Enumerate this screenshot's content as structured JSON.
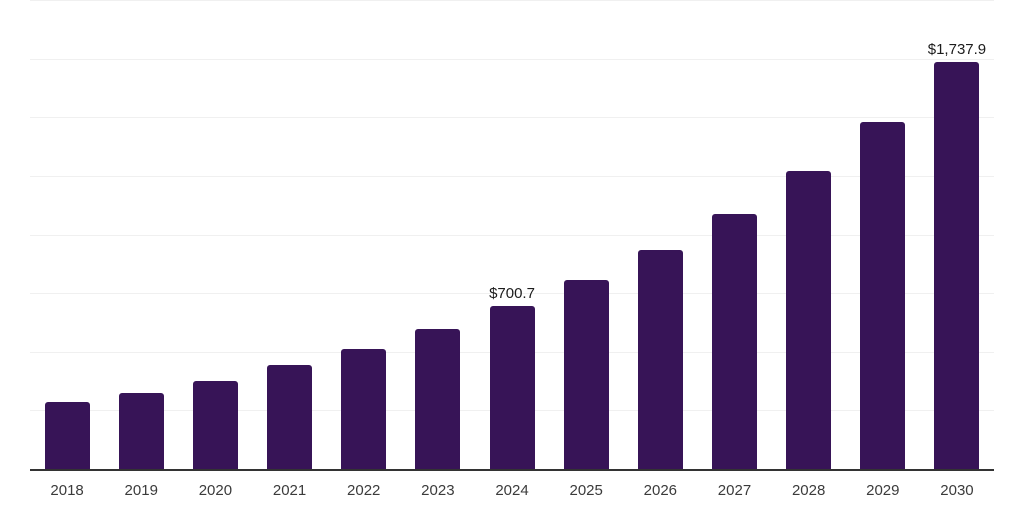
{
  "chart_data": {
    "type": "bar",
    "title": "",
    "xlabel": "",
    "ylabel": "",
    "categories": [
      "2018",
      "2019",
      "2020",
      "2021",
      "2022",
      "2023",
      "2024",
      "2025",
      "2026",
      "2027",
      "2028",
      "2029",
      "2030"
    ],
    "values": [
      289,
      330,
      379,
      448,
      517,
      603,
      700.7,
      810,
      940,
      1092,
      1274,
      1483,
      1737.9
    ],
    "data_labels": [
      "",
      "",
      "",
      "",
      "",
      "",
      "$700.7",
      "",
      "",
      "",
      "",
      "",
      "$1,737.9"
    ],
    "ylim": [
      0,
      2000
    ],
    "gridline_step": 250,
    "grid": "horizontal",
    "legend": "none",
    "y_tick_labels_visible": false,
    "colors": {
      "bar": "#371457",
      "axis_line": "#333333",
      "gridline": "#f0f0f0",
      "value_label": "#1c1c1c",
      "tick_label": "#3b3b3b",
      "background": "#ffffff"
    }
  }
}
